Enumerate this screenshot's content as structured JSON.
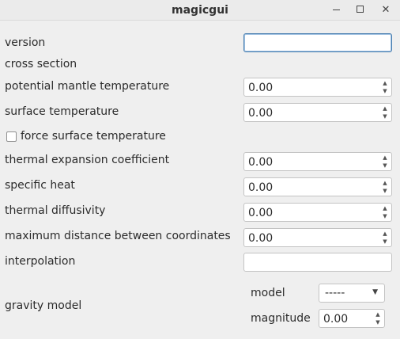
{
  "window": {
    "title": "magicgui"
  },
  "form": {
    "version_label": "version",
    "version_value": "",
    "cross_section_label": "cross section",
    "potential_mantle_temperature_label": "potential mantle temperature",
    "potential_mantle_temperature_value": "0.00",
    "surface_temperature_label": "surface temperature",
    "surface_temperature_value": "0.00",
    "force_surface_temperature_label": "force surface temperature",
    "force_surface_temperature_checked": false,
    "thermal_expansion_coefficient_label": "thermal expansion coefficient",
    "thermal_expansion_coefficient_value": "0.00",
    "specific_heat_label": "specific heat",
    "specific_heat_value": "0.00",
    "thermal_diffusivity_label": "thermal diffusivity",
    "thermal_diffusivity_value": "0.00",
    "maximum_distance_label": "maximum distance between coordinates",
    "maximum_distance_value": "0.00",
    "interpolation_label": "interpolation",
    "interpolation_value": ""
  },
  "gravity_model": {
    "label": "gravity model",
    "model_label": "model",
    "model_selected": "-----",
    "magnitude_label": "magnitude",
    "magnitude_value": "0.00"
  }
}
